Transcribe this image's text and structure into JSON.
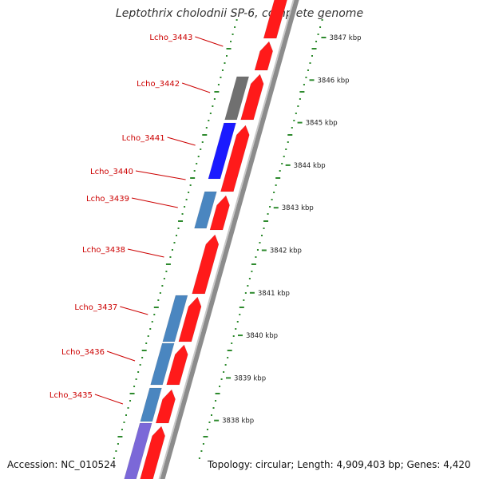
{
  "title": "Leptothrix cholodnii SP-6, complete genome",
  "accession_text": "Accession: NC_010524",
  "summary_text": "Topology: circular; Length: 4,909,403 bp; Genes: 4,420",
  "colors": {
    "forward_cds": "#ff1a1a",
    "reverse_cds_steelblue": "#4a86c0",
    "reverse_cds_blue": "#1a1aff",
    "reverse_cds_gray": "#707070",
    "reverse_cds_purple": "#7b68d8",
    "backbone": "#8c8c8c",
    "gc_ticks": "#2d8a2d",
    "label_line": "#cc0000"
  },
  "scale_labels": [
    "3847 kbp",
    "3846 kbp",
    "3845 kbp",
    "3844 kbp",
    "3843 kbp",
    "3842 kbp",
    "3841 kbp",
    "3840 kbp",
    "3839 kbp",
    "3838 kbp"
  ],
  "gene_labels": [
    "Lcho_3443",
    "Lcho_3442",
    "Lcho_3441",
    "Lcho_3440",
    "Lcho_3439",
    "Lcho_3438",
    "Lcho_3437",
    "Lcho_3436",
    "Lcho_3435"
  ]
}
